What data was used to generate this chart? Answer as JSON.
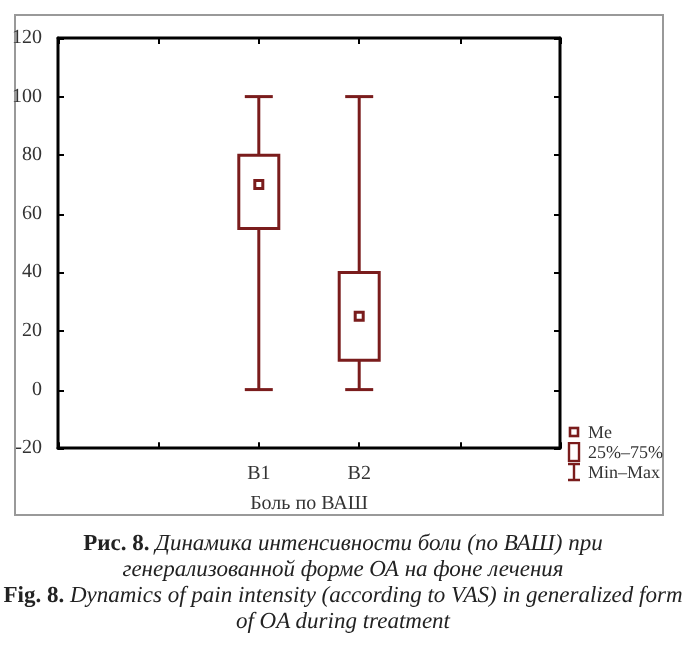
{
  "chart_data": {
    "type": "box",
    "title": "Рис. 8. Динамика интенсивности боли (по ВАШ) при генерализованной форме ОА на фоне лечения",
    "subtitle": "Fig. 8. Dynamics of pain intensity (according to VAS) in generalized form of OA during treatment",
    "xlabel": "Боль по ВАШ",
    "categories": [
      "B1",
      "B2"
    ],
    "color": "#7a1c1c",
    "boxes": [
      {
        "low": 0,
        "q1": 55,
        "median": 70,
        "q3": 80,
        "high": 100
      },
      {
        "low": 0,
        "q1": 10,
        "median": 25,
        "q3": 40,
        "high": 100
      }
    ],
    "ylim": [
      -20,
      120
    ],
    "yticks": [
      -20,
      0,
      20,
      40,
      60,
      80,
      100,
      120
    ],
    "grid": false,
    "annotations": [
      "Me",
      "25%–75%",
      "Min–Max"
    ]
  }
}
